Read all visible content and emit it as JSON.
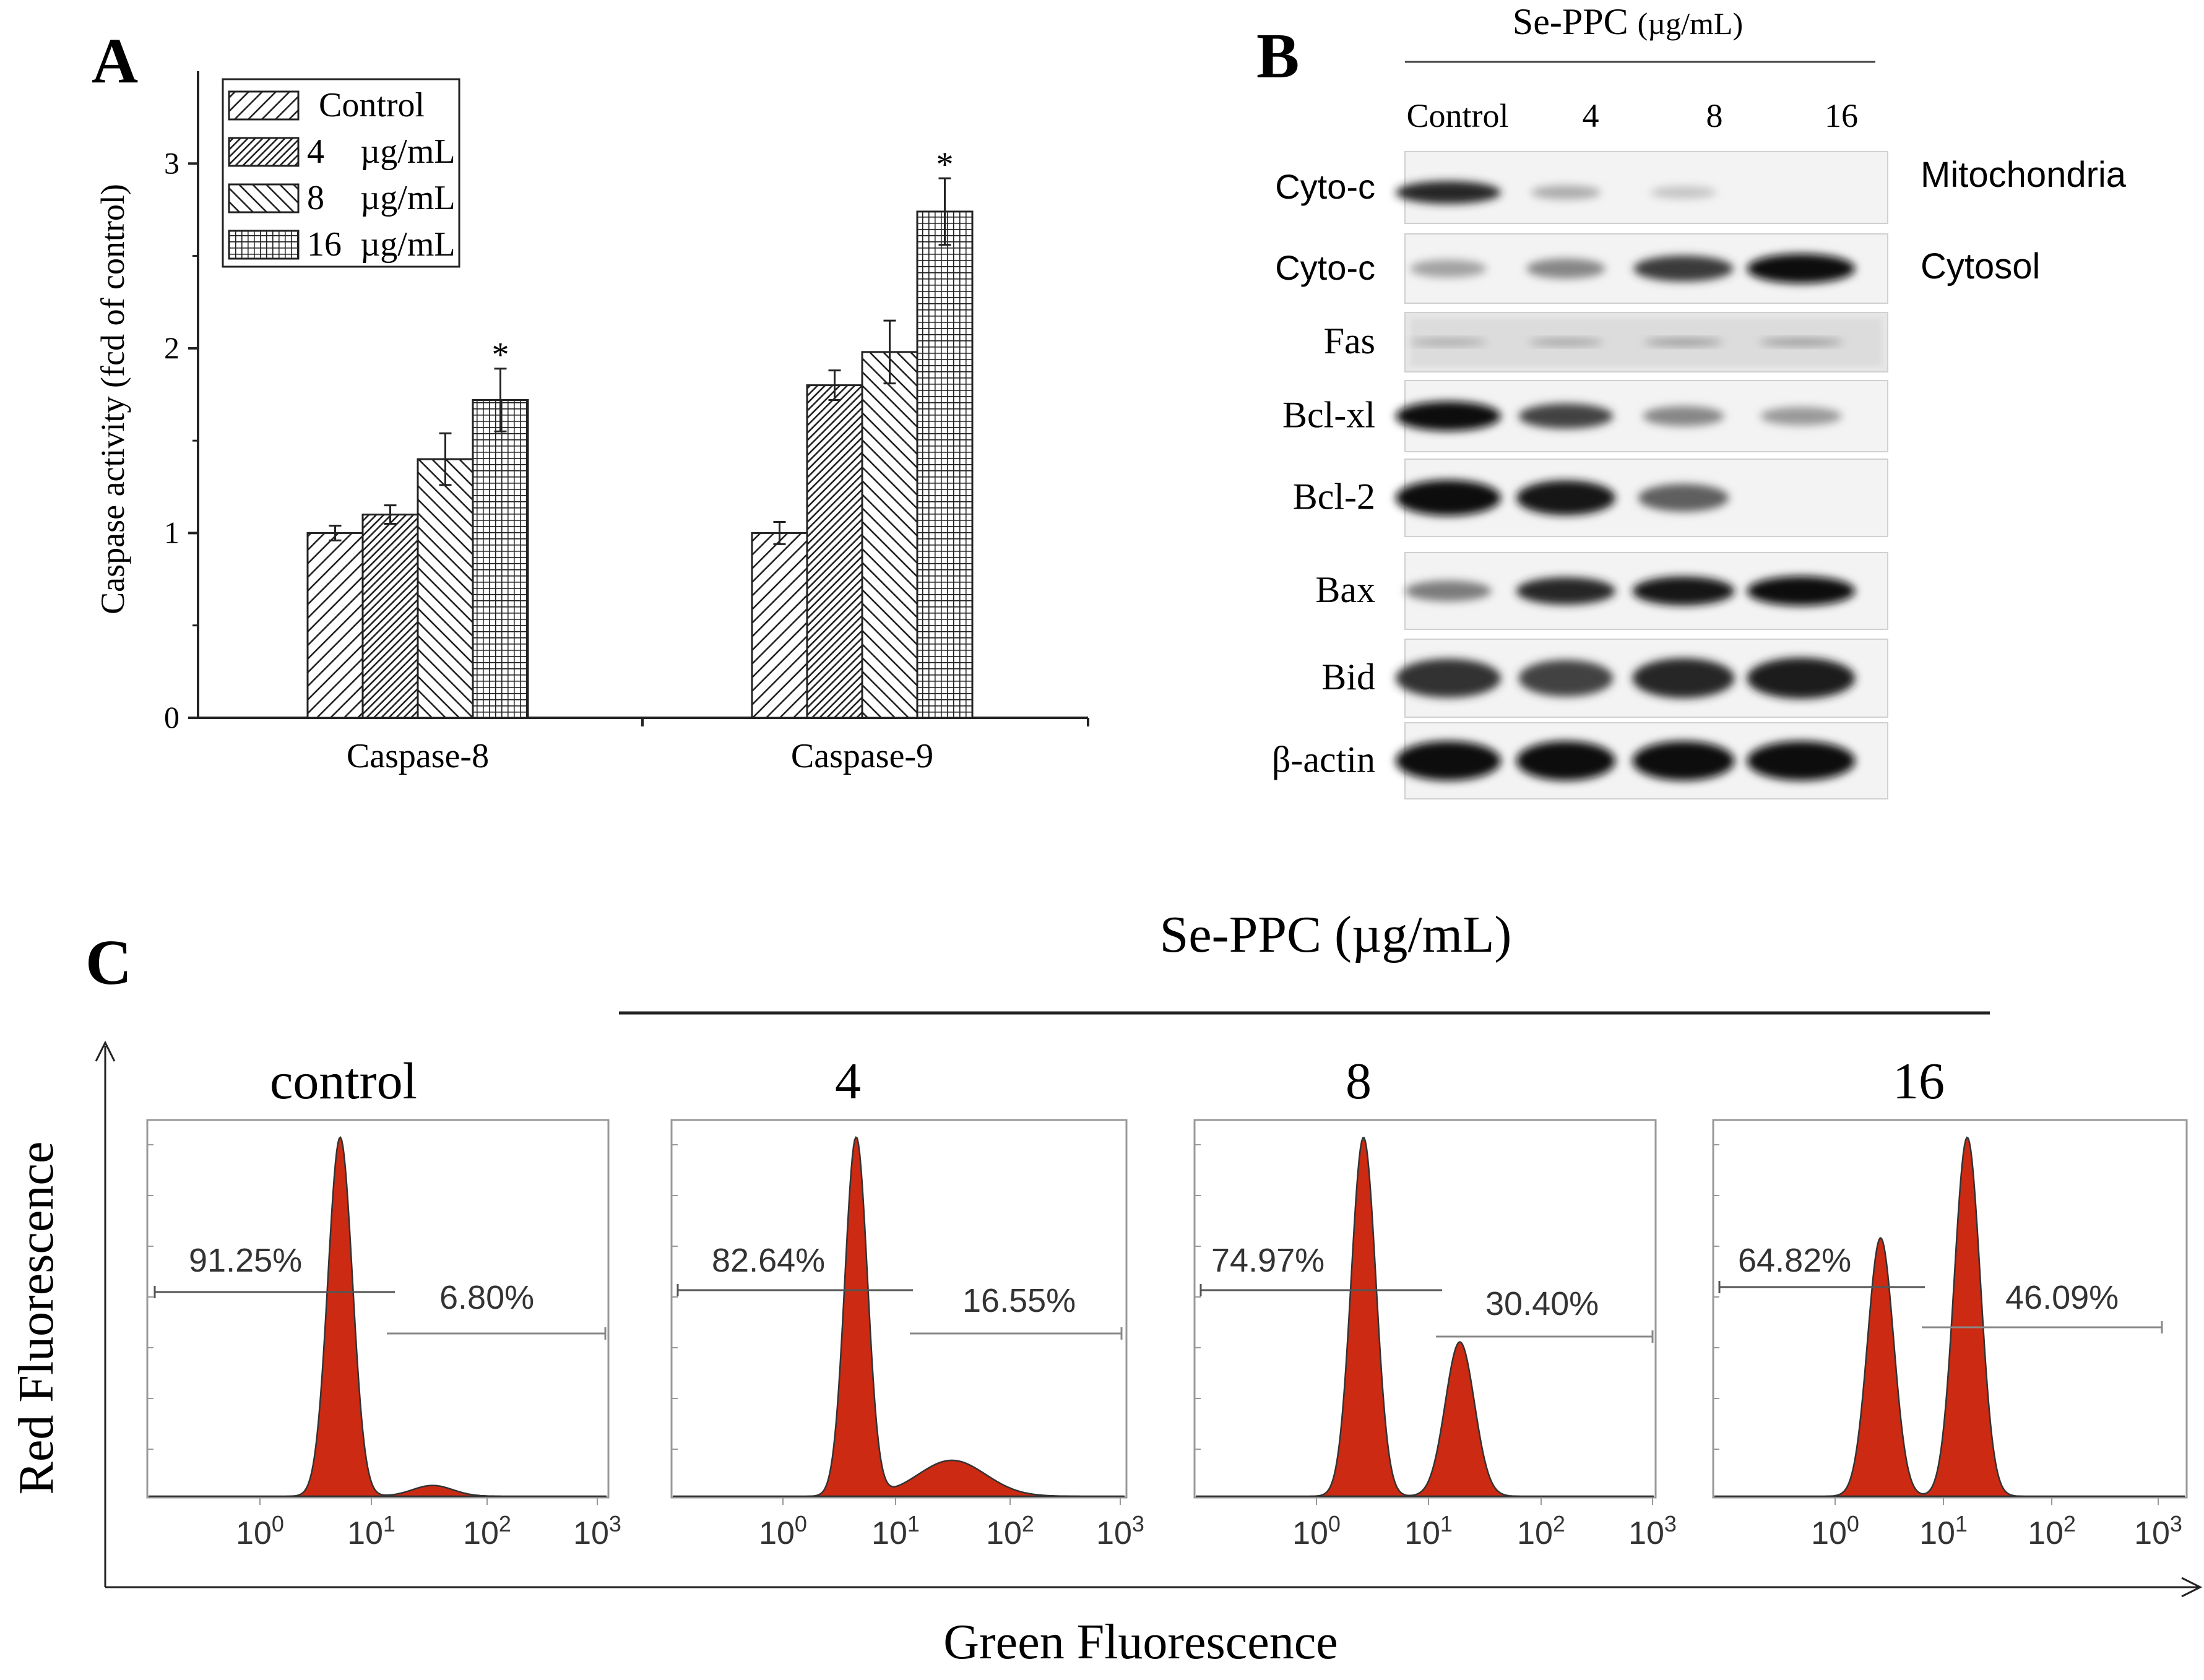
{
  "panels": {
    "a": {
      "letter": "A"
    },
    "b": {
      "letter": "B"
    },
    "c": {
      "letter": "C"
    }
  },
  "chart_data": [
    {
      "type": "bar",
      "panel": "A",
      "ylabel": "Caspase activity (fcd of control)",
      "xlabel": "",
      "ylim": [
        0,
        3.5
      ],
      "yticks": [
        "0",
        "1",
        "2",
        "3"
      ],
      "categories": [
        "Caspase-8",
        "Caspase-9"
      ],
      "legend_position": "top-left",
      "series": [
        {
          "name": "Control",
          "dose": "",
          "unit": "",
          "values": [
            1.0,
            1.0
          ],
          "errors": [
            0.04,
            0.06
          ],
          "significant": [
            false,
            false
          ],
          "pattern": "diag-fine"
        },
        {
          "name": "4",
          "dose": "4",
          "unit": "µg/mL",
          "values": [
            1.1,
            1.8
          ],
          "errors": [
            0.05,
            0.08
          ],
          "significant": [
            false,
            false
          ],
          "pattern": "diag-dense"
        },
        {
          "name": "8",
          "dose": "8",
          "unit": "µg/mL",
          "values": [
            1.4,
            1.98
          ],
          "errors": [
            0.14,
            0.17
          ],
          "significant": [
            false,
            false
          ],
          "pattern": "diag-back"
        },
        {
          "name": "16",
          "dose": "16",
          "unit": "µg/mL",
          "values": [
            1.72,
            2.74
          ],
          "errors": [
            0.17,
            0.18
          ],
          "significant": [
            true,
            true
          ],
          "pattern": "grid"
        }
      ],
      "significance_mark": "*"
    },
    {
      "type": "western-blot",
      "panel": "B",
      "title": "Se-PPC",
      "title_unit": "(µg/mL)",
      "lanes": [
        "Control",
        "4",
        "8",
        "16"
      ],
      "fractions": {
        "mitochondria": "Mitochondria",
        "cytosol": "Cytosol"
      },
      "rows": [
        {
          "label": "Cyto-c",
          "fraction": "Mitochondria",
          "font": "sans",
          "intensity": [
            0.85,
            0.15,
            0.02,
            0.0
          ]
        },
        {
          "label": "Cyto-c",
          "fraction": "Cytosol",
          "font": "sans",
          "intensity": [
            0.2,
            0.35,
            0.75,
            1.0
          ]
        },
        {
          "label": "Fas",
          "fraction": "",
          "font": "serif",
          "intensity": [
            0.22,
            0.25,
            0.3,
            0.3
          ]
        },
        {
          "label": "Bcl-xl",
          "fraction": "",
          "font": "serif",
          "intensity": [
            1.0,
            0.7,
            0.35,
            0.25
          ]
        },
        {
          "label": "Bcl-2",
          "fraction": "",
          "font": "serif",
          "intensity": [
            1.0,
            0.95,
            0.55,
            0.0
          ]
        },
        {
          "label": "Bax",
          "fraction": "",
          "font": "serif",
          "intensity": [
            0.4,
            0.85,
            0.95,
            1.0
          ]
        },
        {
          "label": "Bid",
          "fraction": "",
          "font": "serif",
          "intensity": [
            0.8,
            0.7,
            0.85,
            0.9
          ]
        },
        {
          "label": "β-actin",
          "fraction": "",
          "font": "serif",
          "intensity": [
            1.0,
            1.0,
            1.0,
            1.0
          ]
        }
      ]
    },
    {
      "type": "histogram",
      "panel": "C",
      "title": "Se-PPC (µg/mL)",
      "xlabel": "Green Fluorescence",
      "ylabel": "Red Fluorescence",
      "x_scale": "log",
      "x_ticks": [
        0,
        1,
        2,
        3
      ],
      "x_tick_base": "10",
      "histograms": [
        {
          "label": "control",
          "left_pct": "91.25%",
          "right_pct": "6.80%",
          "peaks": [
            {
              "log10x": 0.72,
              "height": 1.0,
              "width": 0.11
            },
            {
              "log10x": 1.55,
              "height": 0.03,
              "width": 0.18
            }
          ]
        },
        {
          "label": "4",
          "left_pct": "82.64%",
          "right_pct": "16.55%",
          "peaks": [
            {
              "log10x": 0.65,
              "height": 1.0,
              "width": 0.1
            },
            {
              "log10x": 1.5,
              "height": 0.1,
              "width": 0.3
            }
          ]
        },
        {
          "label": "8",
          "left_pct": "74.97%",
          "right_pct": "30.40%",
          "peaks": [
            {
              "log10x": 0.42,
              "height": 1.0,
              "width": 0.11
            },
            {
              "log10x": 1.28,
              "height": 0.43,
              "width": 0.13
            }
          ]
        },
        {
          "label": "16",
          "left_pct": "64.82%",
          "right_pct": "46.09%",
          "peaks": [
            {
              "log10x": 0.42,
              "height": 0.72,
              "width": 0.12
            },
            {
              "log10x": 1.22,
              "height": 1.0,
              "width": 0.12
            }
          ]
        }
      ]
    }
  ]
}
